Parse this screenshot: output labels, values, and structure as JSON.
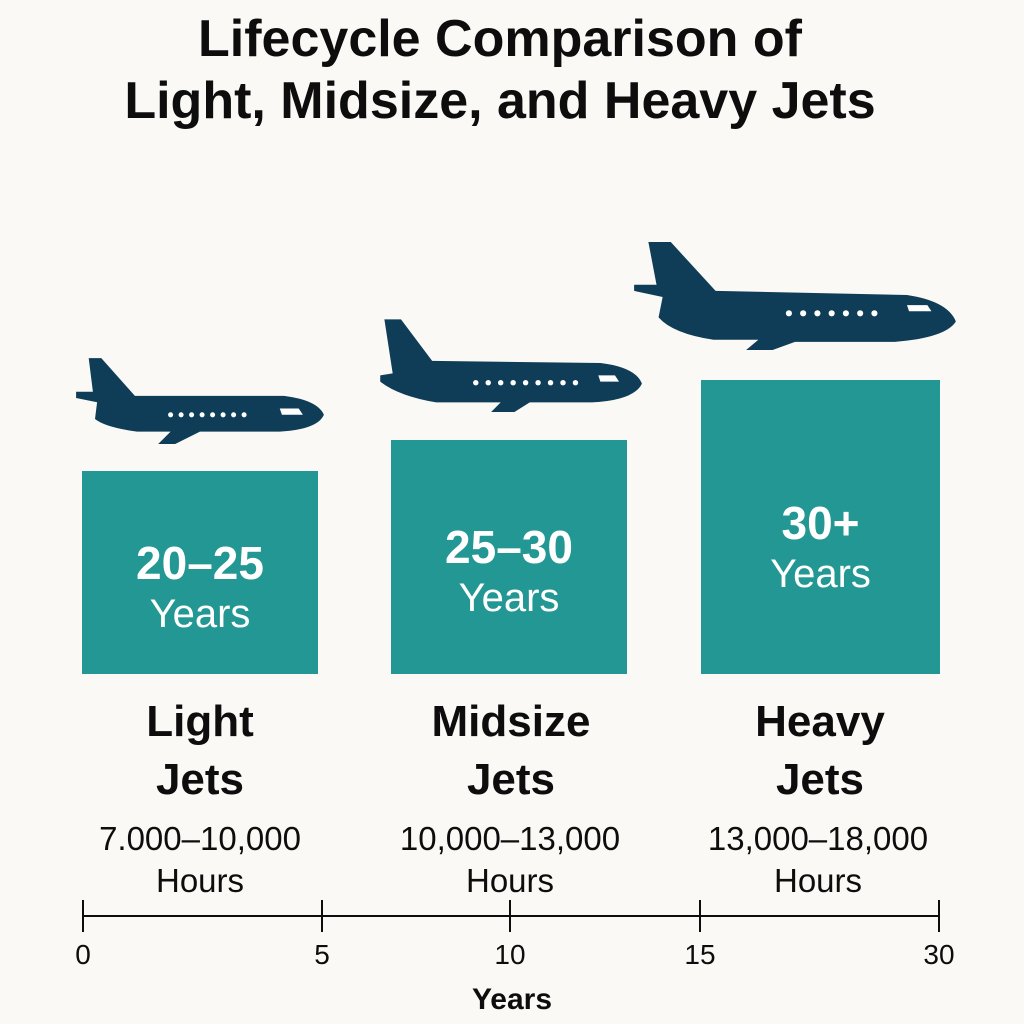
{
  "chart_data": {
    "type": "bar",
    "title_lines": [
      "Lifecycle Comparison of",
      "Light, Midsize, and Heavy Jets"
    ],
    "categories": [
      {
        "name_line1": "Light",
        "name_line2": "Jets",
        "lifespan_range": "20–25",
        "lifespan_unit": "Years",
        "hours_range": "7.000–10,000",
        "hours_unit": "Hours",
        "years_min": 20,
        "years_max": 25
      },
      {
        "name_line1": "Midsize",
        "name_line2": "Jets",
        "lifespan_range": "25–30",
        "lifespan_unit": "Years",
        "hours_range": "10,000–13,000",
        "hours_unit": "Hours",
        "years_min": 25,
        "years_max": 30
      },
      {
        "name_line1": "Heavy",
        "name_line2": "Jets",
        "lifespan_range": "30+",
        "lifespan_unit": "Years",
        "hours_range": "13,000–18,000",
        "hours_unit": "Hours",
        "years_min": 30,
        "years_max": null
      }
    ],
    "xaxis": {
      "label": "Years",
      "ticks": [
        "0",
        "5",
        "10",
        "15",
        "30"
      ]
    },
    "grid": false,
    "legend": "none",
    "bar_color": "#229793",
    "icon_color": "#0f3d57",
    "icons": [
      "jet-plane-icon",
      "jet-plane-icon",
      "jet-plane-icon"
    ]
  }
}
